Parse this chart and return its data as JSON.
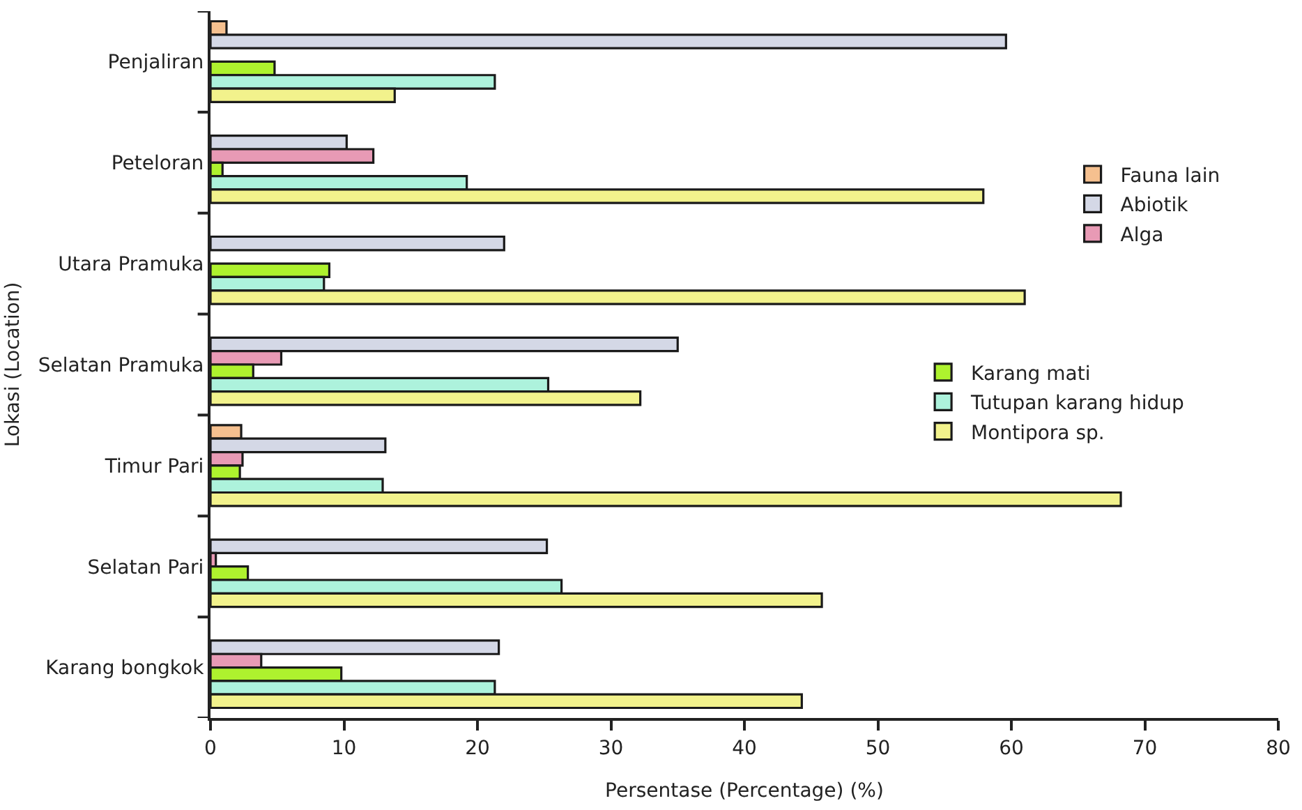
{
  "chart_data": {
    "type": "bar",
    "orientation": "horizontal",
    "xlabel": "Persentase (Percentage) (%)",
    "ylabel": "Lokasi (Location)",
    "categories": [
      "Penjaliran",
      "Peteloran",
      "Utara Pramuka",
      "Selatan Pramuka",
      "Timur Pari",
      "Selatan Pari",
      "Karang bongkok"
    ],
    "series": [
      {
        "name": "Fauna lain",
        "color": "#f5c08f",
        "values": [
          1.2,
          null,
          null,
          null,
          2.3,
          null,
          null
        ]
      },
      {
        "name": "Abiotik",
        "color": "#d4d8e6",
        "values": [
          59.6,
          10.2,
          22.0,
          35.0,
          13.1,
          25.2,
          21.6
        ]
      },
      {
        "name": "Alga",
        "color": "#e89ab5",
        "values": [
          null,
          12.2,
          null,
          5.3,
          2.4,
          0.4,
          3.8
        ]
      },
      {
        "name": "Karang mati",
        "color": "#aef22e",
        "values": [
          4.8,
          0.9,
          8.9,
          3.2,
          2.2,
          2.8,
          9.8
        ]
      },
      {
        "name": "Tutupan karang hidup",
        "color": "#adf2dc",
        "values": [
          21.3,
          19.2,
          8.5,
          25.3,
          12.9,
          26.3,
          21.3
        ]
      },
      {
        "name": "Montipora sp.",
        "color": "#f2f28c",
        "values": [
          13.8,
          57.9,
          61.0,
          32.2,
          68.2,
          45.8,
          44.3
        ]
      }
    ],
    "xlim": [
      0,
      80
    ],
    "xticks": [
      0,
      10,
      20,
      30,
      40,
      50,
      60,
      70,
      80
    ],
    "grid": false,
    "legend": "right"
  }
}
